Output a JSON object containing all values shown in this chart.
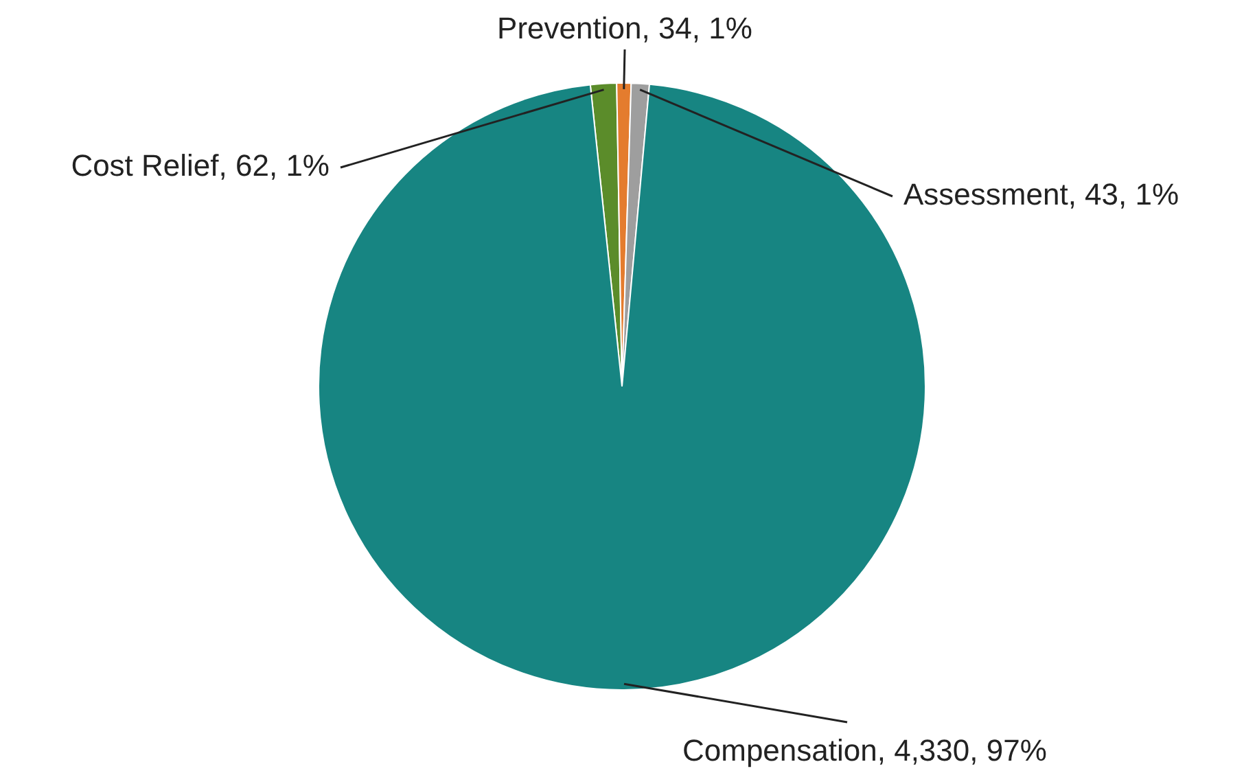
{
  "chart_data": {
    "type": "pie",
    "categories": [
      "Cost Relief",
      "Prevention",
      "Assessment",
      "Compensation"
    ],
    "values": [
      62,
      34,
      43,
      4330
    ],
    "colors": [
      "#5b8c2a",
      "#e47c2e",
      "#9e9e9e",
      "#178582"
    ],
    "value_labels": [
      "62, 1%",
      "34, 1%",
      "43, 1%",
      "4,330, 97%"
    ],
    "legend": false
  }
}
